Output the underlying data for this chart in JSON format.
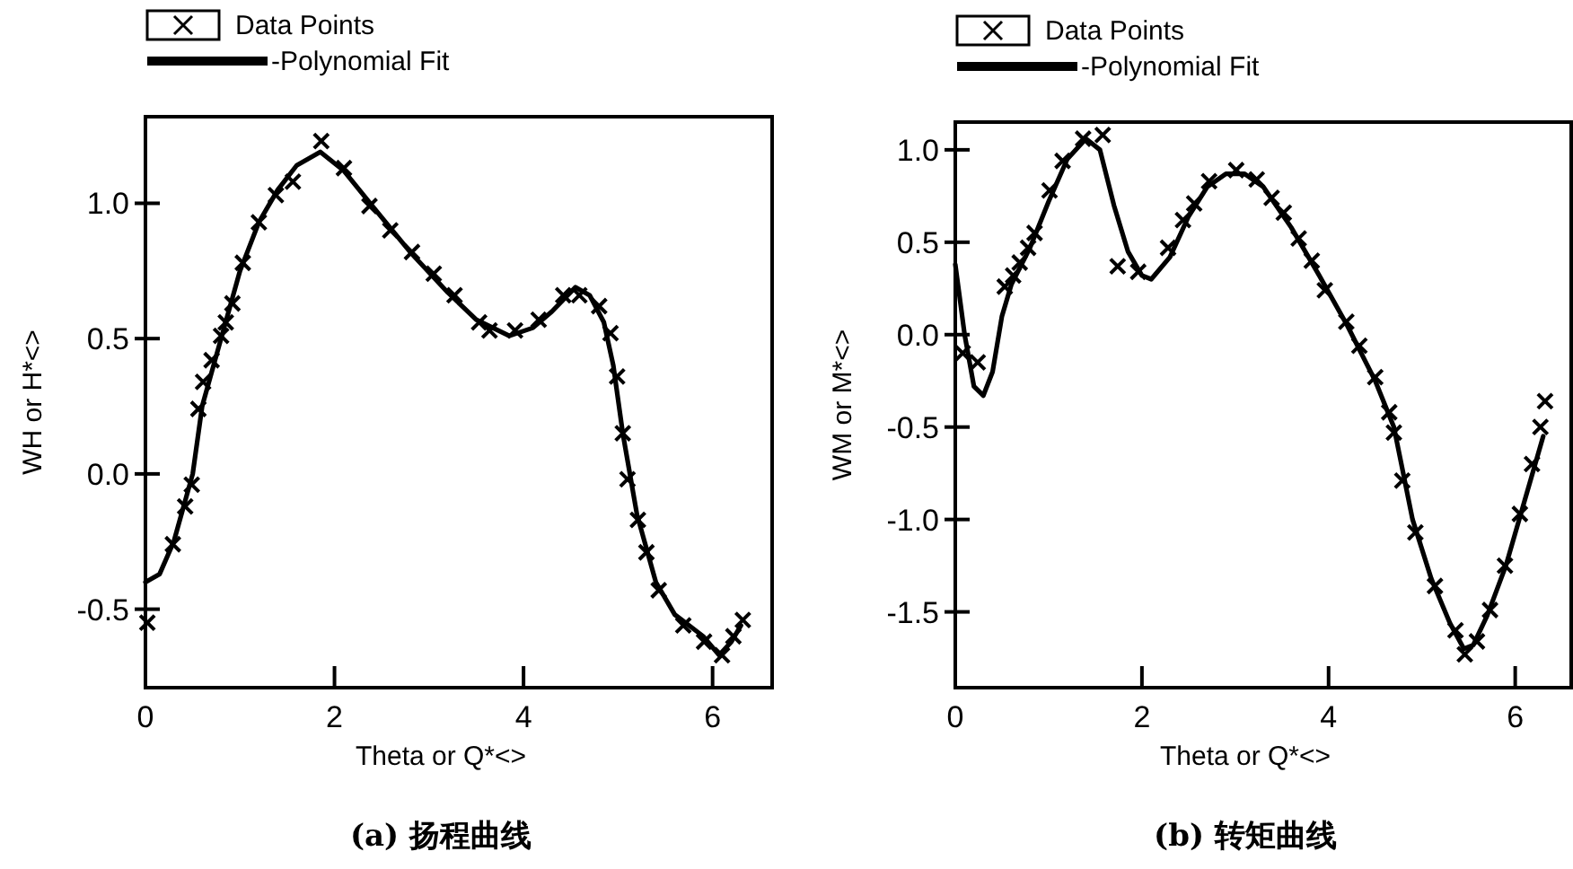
{
  "chart_data": [
    {
      "type": "scatter",
      "xlabel": "Theta or Q*<>",
      "ylabel": "WH or H*<>",
      "xlim": [
        0,
        6.63
      ],
      "ylim": [
        -0.79,
        1.32
      ],
      "xticks": [
        0,
        2,
        4,
        6
      ],
      "yticks": [
        {
          "value": -0.5,
          "label": "-0.5"
        },
        {
          "value": 0,
          "label": "0.0"
        },
        {
          "value": 0.5,
          "label": "0.5"
        },
        {
          "value": 1,
          "label": "1.0"
        }
      ],
      "legend": "top",
      "grid": false,
      "annotations": [
        "(a) 扬程曲线"
      ],
      "series": [
        {
          "name": "Data Points",
          "type": "scatter",
          "marker": "cross",
          "color": "#000000",
          "x": [
            0.02,
            0.29,
            0.42,
            0.49,
            0.56,
            0.61,
            0.7,
            0.8,
            0.85,
            0.92,
            1.03,
            1.2,
            1.38,
            1.56,
            1.86,
            2.1,
            2.37,
            2.59,
            2.82,
            3.05,
            3.27,
            3.53,
            3.64,
            3.91,
            4.16,
            4.42,
            4.59,
            4.8,
            4.92,
            4.99,
            5.05,
            5.1,
            5.21,
            5.3,
            5.43,
            5.69,
            5.91,
            6.1,
            6.22,
            6.32
          ],
          "values": [
            -0.55,
            -0.26,
            -0.12,
            -0.04,
            0.24,
            0.34,
            0.42,
            0.51,
            0.56,
            0.63,
            0.78,
            0.93,
            1.03,
            1.08,
            1.23,
            1.13,
            0.99,
            0.9,
            0.82,
            0.74,
            0.66,
            0.56,
            0.53,
            0.53,
            0.57,
            0.66,
            0.66,
            0.62,
            0.52,
            0.36,
            0.15,
            -0.02,
            -0.17,
            -0.29,
            -0.43,
            -0.56,
            -0.62,
            -0.67,
            -0.6,
            -0.54
          ]
        },
        {
          "name": "-Polynomial Fit",
          "type": "line",
          "marker": "none",
          "line_style": "solid",
          "color": "#000000",
          "x": [
            0,
            0.15,
            0.3,
            0.5,
            0.6,
            0.8,
            1.0,
            1.2,
            1.4,
            1.6,
            1.85,
            2.1,
            2.4,
            2.8,
            3.2,
            3.5,
            3.85,
            4.1,
            4.3,
            4.55,
            4.7,
            4.85,
            4.95,
            5.05,
            5.2,
            5.4,
            5.6,
            5.9,
            6.07,
            6.2,
            6.3
          ],
          "values": [
            -0.4,
            -0.37,
            -0.25,
            0,
            0.25,
            0.5,
            0.75,
            0.93,
            1.05,
            1.14,
            1.19,
            1.12,
            0.99,
            0.82,
            0.67,
            0.57,
            0.51,
            0.54,
            0.6,
            0.69,
            0.66,
            0.56,
            0.4,
            0.15,
            -0.15,
            -0.4,
            -0.52,
            -0.6,
            -0.67,
            -0.62,
            -0.56
          ]
        }
      ]
    },
    {
      "type": "scatter",
      "xlabel": "Theta or Q*<>",
      "ylabel": "WM or M*<>",
      "xlim": [
        0,
        6.6
      ],
      "ylim": [
        -1.91,
        1.15
      ],
      "xticks": [
        0,
        2,
        4,
        6
      ],
      "yticks": [
        {
          "value": -1.5,
          "label": "-1.5"
        },
        {
          "value": -1,
          "label": "-1.0"
        },
        {
          "value": -0.5,
          "label": "-0.5"
        },
        {
          "value": 0,
          "label": "0.0"
        },
        {
          "value": 0.5,
          "label": "0.5"
        },
        {
          "value": 1,
          "label": "1.0"
        }
      ],
      "legend": "top",
      "grid": false,
      "annotations": [
        "(b) 转矩曲线"
      ],
      "series": [
        {
          "name": "Data Points",
          "type": "scatter",
          "marker": "cross",
          "color": "#000000",
          "x": [
            0.08,
            0.24,
            0.53,
            0.62,
            0.69,
            0.78,
            0.85,
            1.01,
            1.15,
            1.37,
            1.58,
            1.74,
            1.96,
            2.28,
            2.44,
            2.56,
            2.72,
            3.01,
            3.23,
            3.39,
            3.52,
            3.68,
            3.82,
            3.96,
            4.19,
            4.33,
            4.5,
            4.65,
            4.7,
            4.79,
            4.93,
            5.14,
            5.36,
            5.46,
            5.59,
            5.73,
            5.89,
            6.05,
            6.18,
            6.27,
            6.32
          ],
          "values": [
            -0.1,
            -0.15,
            0.26,
            0.32,
            0.39,
            0.47,
            0.55,
            0.78,
            0.94,
            1.06,
            1.08,
            0.37,
            0.34,
            0.47,
            0.62,
            0.71,
            0.83,
            0.89,
            0.84,
            0.74,
            0.66,
            0.52,
            0.4,
            0.24,
            0.07,
            -0.06,
            -0.23,
            -0.42,
            -0.53,
            -0.79,
            -1.07,
            -1.36,
            -1.6,
            -1.73,
            -1.66,
            -1.49,
            -1.25,
            -0.97,
            -0.7,
            -0.5,
            -0.36
          ]
        },
        {
          "name": "-Polynomial Fit",
          "type": "line",
          "marker": "none",
          "line_style": "solid",
          "color": "#000000",
          "x": [
            0,
            0.1,
            0.2,
            0.3,
            0.4,
            0.5,
            0.6,
            0.8,
            1.0,
            1.2,
            1.4,
            1.55,
            1.7,
            1.85,
            2.0,
            2.1,
            2.3,
            2.5,
            2.7,
            2.9,
            3.1,
            3.3,
            3.6,
            3.9,
            4.2,
            4.5,
            4.7,
            4.9,
            5.1,
            5.3,
            5.45,
            5.55,
            5.7,
            5.9,
            6.1,
            6.3
          ],
          "values": [
            0.38,
            0.0,
            -0.28,
            -0.33,
            -0.2,
            0.1,
            0.27,
            0.47,
            0.72,
            0.95,
            1.06,
            1.0,
            0.7,
            0.45,
            0.32,
            0.3,
            0.42,
            0.64,
            0.8,
            0.87,
            0.87,
            0.8,
            0.58,
            0.32,
            0.05,
            -0.25,
            -0.5,
            -1.0,
            -1.32,
            -1.56,
            -1.7,
            -1.68,
            -1.52,
            -1.25,
            -0.9,
            -0.55
          ]
        }
      ]
    }
  ]
}
